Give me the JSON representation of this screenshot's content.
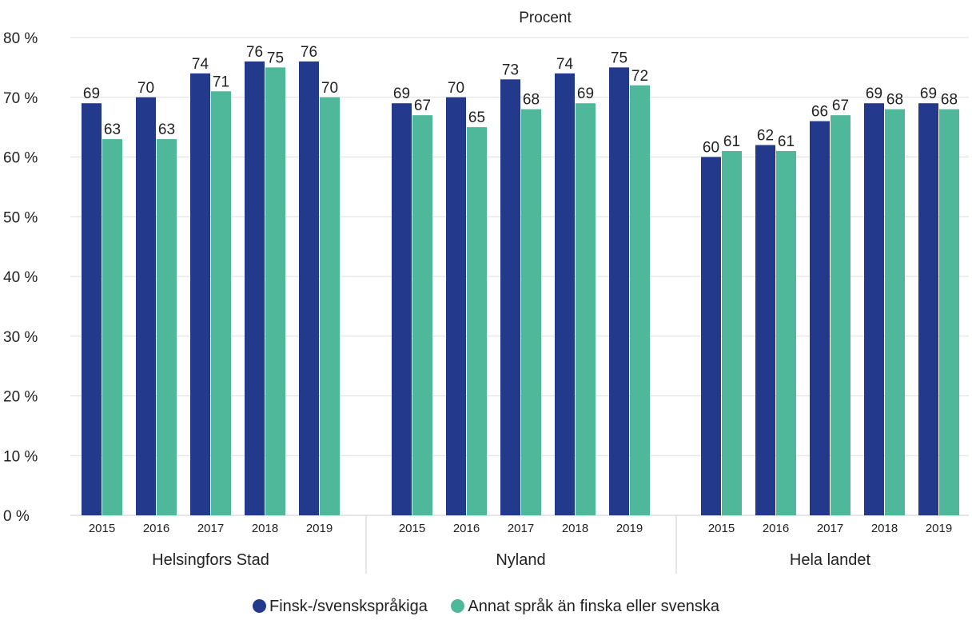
{
  "chart_data": {
    "type": "bar",
    "ylabel": "Procent",
    "ylim": [
      0,
      80
    ],
    "yticks": [
      "0 %",
      "10 %",
      "20 %",
      "30 %",
      "40 %",
      "50 %",
      "60 %",
      "70 %",
      "80 %"
    ],
    "grid": true,
    "legend_position": "bottom",
    "groups": [
      {
        "name": "Helsingfors Stad",
        "categories": [
          "2015",
          "2016",
          "2017",
          "2018",
          "2019"
        ],
        "series": [
          {
            "name": "Finsk-/svenskspråkiga",
            "values": [
              69,
              70,
              74,
              76,
              76
            ]
          },
          {
            "name": "Annat språk än finska eller svenska",
            "values": [
              63,
              63,
              71,
              75,
              70
            ]
          }
        ]
      },
      {
        "name": "Nyland",
        "categories": [
          "2015",
          "2016",
          "2017",
          "2018",
          "2019"
        ],
        "series": [
          {
            "name": "Finsk-/svenskspråkiga",
            "values": [
              69,
              70,
              73,
              74,
              75
            ]
          },
          {
            "name": "Annat språk än finska eller svenska",
            "values": [
              67,
              65,
              68,
              69,
              72
            ]
          }
        ]
      },
      {
        "name": "Hela landet",
        "categories": [
          "2015",
          "2016",
          "2017",
          "2018",
          "2019"
        ],
        "series": [
          {
            "name": "Finsk-/svenskspråkiga",
            "values": [
              60,
              62,
              66,
              69,
              69
            ]
          },
          {
            "name": "Annat språk än finska eller svenska",
            "values": [
              61,
              61,
              67,
              68,
              68
            ]
          }
        ]
      }
    ],
    "legend": [
      {
        "label": "Finsk-/svenskspråkiga",
        "color": "#233a8c"
      },
      {
        "label": "Annat språk än finska eller svenska",
        "color": "#4fb89b"
      }
    ]
  }
}
